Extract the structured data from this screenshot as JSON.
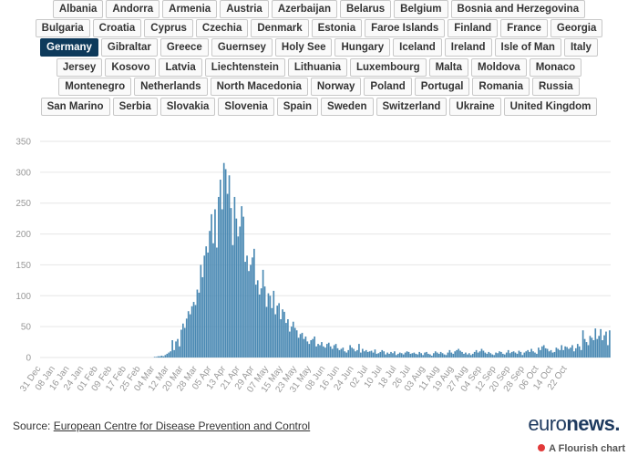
{
  "countries": {
    "rows": [
      [
        "Albania",
        "Andorra",
        "Armenia",
        "Austria",
        "Azerbaijan",
        "Belarus",
        "Belgium",
        "Bosnia and Herzegovina"
      ],
      [
        "Bulgaria",
        "Croatia",
        "Cyprus",
        "Czechia",
        "Denmark",
        "Estonia",
        "Faroe Islands",
        "Finland",
        "France",
        "Georgia"
      ],
      [
        "Germany",
        "Gibraltar",
        "Greece",
        "Guernsey",
        "Holy See",
        "Hungary",
        "Iceland",
        "Ireland",
        "Isle of Man",
        "Italy"
      ],
      [
        "Jersey",
        "Kosovo",
        "Latvia",
        "Liechtenstein",
        "Lithuania",
        "Luxembourg",
        "Malta",
        "Moldova",
        "Monaco"
      ],
      [
        "Montenegro",
        "Netherlands",
        "North Macedonia",
        "Norway",
        "Poland",
        "Portugal",
        "Romania",
        "Russia"
      ],
      [
        "San Marino",
        "Serbia",
        "Slovakia",
        "Slovenia",
        "Spain",
        "Sweden",
        "Switzerland",
        "Ukraine",
        "United Kingdom"
      ]
    ],
    "selected": "Germany"
  },
  "footer": {
    "source_label": "Source:",
    "source_link": "European Centre for Disease Prevention and Control",
    "logo_light": "euro",
    "logo_bold": "news.",
    "flourish": "A Flourish chart"
  },
  "colors": {
    "bar": "#4a89b3",
    "selected": "#0e3a5b"
  },
  "chart_data": {
    "type": "bar",
    "title": "",
    "xlabel": "",
    "ylabel": "",
    "ylim": [
      0,
      350
    ],
    "yticks": [
      0,
      50,
      100,
      150,
      200,
      250,
      300,
      350
    ],
    "x_tick_labels": [
      "31 Dec",
      "08 Jan",
      "16 Jan",
      "24 Jan",
      "01 Feb",
      "09 Feb",
      "17 Feb",
      "25 Feb",
      "04 Mar",
      "12 Mar",
      "20 Mar",
      "28 Mar",
      "05 Apr",
      "13 Apr",
      "21 Apr",
      "29 Apr",
      "07 May",
      "15 May",
      "23 May",
      "31 May",
      "08 Jun",
      "16 Jun",
      "24 Jun",
      "02 Jul",
      "10 Jul",
      "18 Jul",
      "26 Jul",
      "03 Aug",
      "11 Aug",
      "19 Aug",
      "27 Aug",
      "04 Sep",
      "12 Sep",
      "20 Sep",
      "28 Sep",
      "06 Oct",
      "14 Oct",
      "22 Oct"
    ],
    "series": [
      {
        "name": "Germany",
        "start_date": "31 Dec",
        "values": [
          0,
          0,
          0,
          0,
          0,
          0,
          0,
          0,
          0,
          0,
          0,
          0,
          0,
          0,
          0,
          0,
          0,
          0,
          0,
          0,
          0,
          0,
          0,
          0,
          0,
          0,
          0,
          0,
          0,
          0,
          0,
          0,
          0,
          0,
          0,
          0,
          0,
          0,
          0,
          0,
          0,
          0,
          0,
          0,
          0,
          0,
          0,
          0,
          0,
          0,
          0,
          0,
          0,
          0,
          0,
          0,
          0,
          0,
          0,
          0,
          0,
          0,
          0,
          0,
          1,
          1,
          2,
          2,
          3,
          2,
          4,
          6,
          8,
          10,
          28,
          12,
          26,
          30,
          18,
          45,
          55,
          48,
          63,
          75,
          70,
          83,
          90,
          85,
          110,
          105,
          150,
          130,
          165,
          180,
          170,
          205,
          232,
          185,
          240,
          178,
          260,
          288,
          240,
          315,
          305,
          265,
          295,
          242,
          182,
          260,
          225,
          196,
          212,
          245,
          228,
          155,
          165,
          140,
          150,
          162,
          176,
          118,
          125,
          102,
          112,
          142,
          115,
          82,
          104,
          100,
          80,
          108,
          70,
          84,
          88,
          62,
          78,
          74,
          56,
          62,
          42,
          50,
          58,
          48,
          44,
          32,
          38,
          40,
          30,
          34,
          26,
          22,
          28,
          30,
          34,
          18,
          22,
          20,
          25,
          18,
          16,
          22,
          24,
          18,
          14,
          20,
          22,
          15,
          12,
          14,
          16,
          10,
          8,
          12,
          20,
          16,
          14,
          10,
          12,
          22,
          8,
          14,
          10,
          12,
          9,
          10,
          11,
          8,
          13,
          6,
          7,
          9,
          12,
          10,
          5,
          8,
          6,
          9,
          7,
          10,
          4,
          6,
          8,
          7,
          5,
          8,
          10,
          9,
          6,
          7,
          8,
          6,
          5,
          9,
          7,
          4,
          8,
          9,
          6,
          5,
          3,
          7,
          10,
          8,
          6,
          9,
          7,
          5,
          4,
          8,
          12,
          8,
          6,
          10,
          12,
          14,
          11,
          9,
          6,
          8,
          5,
          7,
          4,
          6,
          9,
          12,
          8,
          10,
          14,
          11,
          8,
          6,
          9,
          7,
          5,
          4,
          8,
          7,
          10,
          9,
          6,
          5,
          8,
          12,
          7,
          9,
          10,
          8,
          6,
          11,
          9,
          4,
          8,
          10,
          12,
          9,
          14,
          10,
          8,
          6,
          16,
          12,
          18,
          20,
          15,
          14,
          10,
          12,
          8,
          9,
          16,
          14,
          12,
          20,
          12,
          18,
          17,
          14,
          16,
          20,
          10,
          15,
          22,
          18,
          12,
          44,
          30,
          25,
          20,
          35,
          32,
          28,
          47,
          30,
          35,
          46,
          28,
          36,
          42,
          20,
          44
        ]
      }
    ]
  }
}
